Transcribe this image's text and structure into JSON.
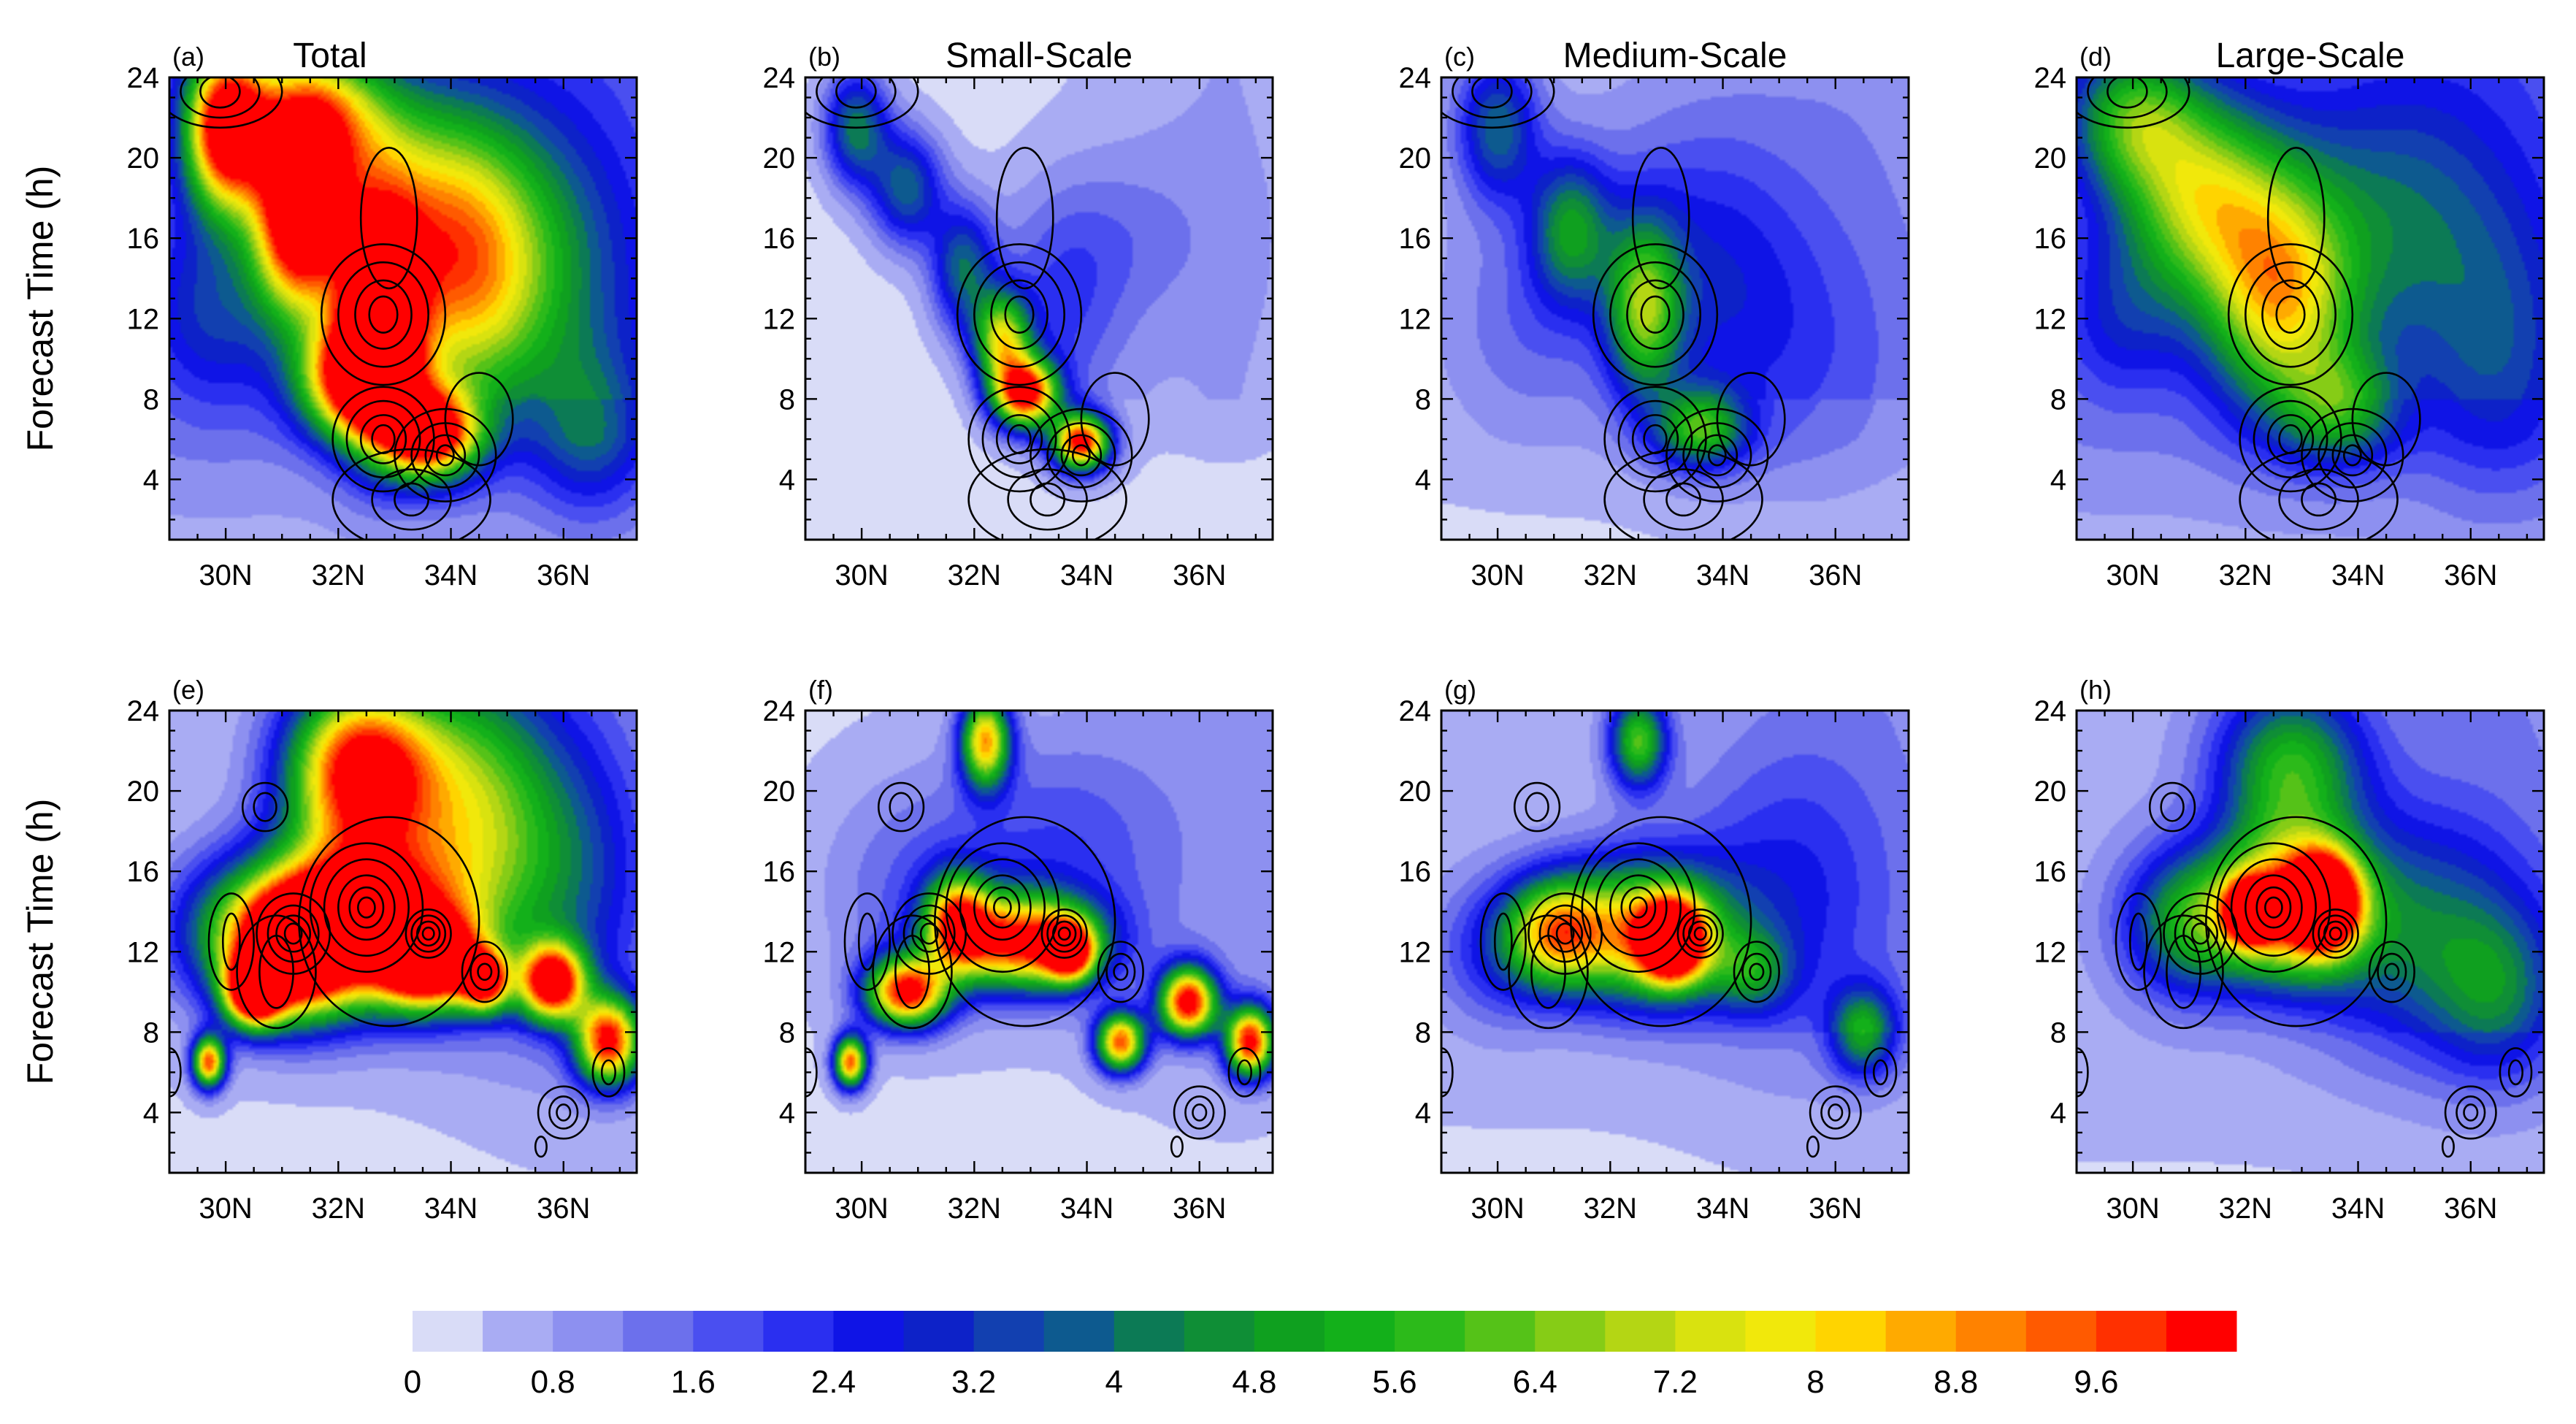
{
  "chart_data": {
    "type": "heatmap",
    "figure_note": "",
    "ylabel": "Forecast Time (h)",
    "x_ticks": [
      "30N",
      "32N",
      "34N",
      "36N"
    ],
    "x_tick_values": [
      30,
      32,
      34,
      36
    ],
    "y_ticks": [
      "4",
      "8",
      "12",
      "16",
      "20",
      "24"
    ],
    "y_tick_values": [
      4,
      8,
      12,
      16,
      20,
      24
    ],
    "xlim": [
      29.0,
      37.3
    ],
    "ylim": [
      1.0,
      24.0
    ],
    "grid": false,
    "panels": [
      {
        "tag": "(a)",
        "title": "Total",
        "row": 0,
        "col": 0,
        "blobs": [
          {
            "lat": 32.7,
            "t": 12.0,
            "sx": 0.55,
            "sy": 4.0,
            "amp": 10.2
          },
          {
            "lat": 31.3,
            "t": 17.0,
            "sx": 0.55,
            "sy": 3.2,
            "amp": 10.5
          },
          {
            "lat": 30.0,
            "t": 21.5,
            "sx": 0.5,
            "sy": 2.8,
            "amp": 10.0
          },
          {
            "lat": 33.6,
            "t": 6.2,
            "sx": 0.6,
            "sy": 1.6,
            "amp": 10.5
          },
          {
            "lat": 32.3,
            "t": 9.0,
            "sx": 0.7,
            "sy": 2.0,
            "amp": 8.5
          },
          {
            "lat": 34.2,
            "t": 13.0,
            "sx": 0.9,
            "sy": 4.0,
            "amp": 4.2
          },
          {
            "lat": 33.5,
            "t": 18.0,
            "sx": 1.3,
            "sy": 4.0,
            "amp": 5.0
          },
          {
            "lat": 31.5,
            "t": 22.0,
            "sx": 0.9,
            "sy": 2.5,
            "amp": 7.0
          },
          {
            "lat": 35.5,
            "t": 14.0,
            "sx": 1.2,
            "sy": 5.0,
            "amp": 2.6
          },
          {
            "lat": 29.8,
            "t": 12.5,
            "sx": 0.9,
            "sy": 3.5,
            "amp": 2.2
          },
          {
            "lat": 36.5,
            "t": 6.0,
            "sx": 0.7,
            "sy": 3.0,
            "amp": 2.3
          }
        ],
        "bg": 1.1
      },
      {
        "tag": "(b)",
        "title": "Small-Scale",
        "row": 0,
        "col": 1,
        "blobs": [
          {
            "lat": 32.9,
            "t": 8.3,
            "sx": 0.4,
            "sy": 1.2,
            "amp": 10.0
          },
          {
            "lat": 33.9,
            "t": 5.8,
            "sx": 0.35,
            "sy": 1.0,
            "amp": 10.2
          },
          {
            "lat": 32.5,
            "t": 11.0,
            "sx": 0.35,
            "sy": 1.6,
            "amp": 6.5
          },
          {
            "lat": 31.8,
            "t": 14.5,
            "sx": 0.4,
            "sy": 2.2,
            "amp": 3.6
          },
          {
            "lat": 30.8,
            "t": 18.5,
            "sx": 0.45,
            "sy": 2.0,
            "amp": 3.6
          },
          {
            "lat": 29.9,
            "t": 21.5,
            "sx": 0.4,
            "sy": 2.0,
            "amp": 4.0
          },
          {
            "lat": 33.5,
            "t": 12.0,
            "sx": 0.8,
            "sy": 4.0,
            "amp": 1.5
          },
          {
            "lat": 34.5,
            "t": 16.0,
            "sx": 1.2,
            "sy": 3.0,
            "amp": 0.8
          }
        ],
        "bg": 0.2
      },
      {
        "tag": "(c)",
        "title": "Medium-Scale",
        "row": 0,
        "col": 2,
        "blobs": [
          {
            "lat": 32.6,
            "t": 12.5,
            "sx": 0.45,
            "sy": 3.0,
            "amp": 5.0
          },
          {
            "lat": 33.6,
            "t": 6.5,
            "sx": 0.55,
            "sy": 1.4,
            "amp": 4.8
          },
          {
            "lat": 31.3,
            "t": 16.5,
            "sx": 0.5,
            "sy": 2.5,
            "amp": 3.8
          },
          {
            "lat": 30.0,
            "t": 21.5,
            "sx": 0.5,
            "sy": 2.5,
            "amp": 3.4
          },
          {
            "lat": 33.5,
            "t": 15.0,
            "sx": 1.3,
            "sy": 5.0,
            "amp": 1.8
          },
          {
            "lat": 35.0,
            "t": 10.0,
            "sx": 1.5,
            "sy": 5.0,
            "amp": 0.9
          },
          {
            "lat": 30.5,
            "t": 12.0,
            "sx": 1.0,
            "sy": 4.0,
            "amp": 1.0
          }
        ],
        "bg": 0.5
      },
      {
        "tag": "(d)",
        "title": "Large-Scale",
        "row": 0,
        "col": 3,
        "blobs": [
          {
            "lat": 32.6,
            "t": 13.0,
            "sx": 0.9,
            "sy": 4.0,
            "amp": 6.2
          },
          {
            "lat": 31.2,
            "t": 18.0,
            "sx": 1.0,
            "sy": 3.5,
            "amp": 5.5
          },
          {
            "lat": 30.0,
            "t": 22.0,
            "sx": 0.8,
            "sy": 2.5,
            "amp": 4.2
          },
          {
            "lat": 33.7,
            "t": 7.5,
            "sx": 0.7,
            "sy": 2.0,
            "amp": 3.5
          },
          {
            "lat": 34.5,
            "t": 17.0,
            "sx": 1.5,
            "sy": 5.0,
            "amp": 2.5
          },
          {
            "lat": 36.5,
            "t": 10.0,
            "sx": 1.0,
            "sy": 5.0,
            "amp": 1.6
          },
          {
            "lat": 29.8,
            "t": 12.0,
            "sx": 0.8,
            "sy": 3.0,
            "amp": 1.6
          }
        ],
        "bg": 1.1
      },
      {
        "tag": "(e)",
        "title": "",
        "row": 1,
        "col": 0,
        "blobs": [
          {
            "lat": 32.3,
            "t": 13.5,
            "sx": 1.2,
            "sy": 2.7,
            "amp": 12.0
          },
          {
            "lat": 33.6,
            "t": 11.5,
            "sx": 0.6,
            "sy": 1.5,
            "amp": 10.5
          },
          {
            "lat": 31.2,
            "t": 12.0,
            "sx": 0.7,
            "sy": 2.2,
            "amp": 10.0
          },
          {
            "lat": 32.4,
            "t": 21.0,
            "sx": 0.9,
            "sy": 3.0,
            "amp": 10.5
          },
          {
            "lat": 30.5,
            "t": 10.0,
            "sx": 0.35,
            "sy": 1.2,
            "amp": 10.0
          },
          {
            "lat": 35.8,
            "t": 10.5,
            "sx": 0.4,
            "sy": 1.3,
            "amp": 10.0
          },
          {
            "lat": 36.8,
            "t": 7.5,
            "sx": 0.4,
            "sy": 1.5,
            "amp": 9.5
          },
          {
            "lat": 34.6,
            "t": 10.5,
            "sx": 0.3,
            "sy": 1.0,
            "amp": 8.0
          },
          {
            "lat": 34.3,
            "t": 19.0,
            "sx": 1.0,
            "sy": 5.0,
            "amp": 5.5
          },
          {
            "lat": 29.7,
            "t": 6.5,
            "sx": 0.2,
            "sy": 0.9,
            "amp": 9.0
          },
          {
            "lat": 30.0,
            "t": 13.0,
            "sx": 0.8,
            "sy": 2.5,
            "amp": 3.0
          },
          {
            "lat": 36.0,
            "t": 16.0,
            "sx": 1.0,
            "sy": 5.0,
            "amp": 2.5
          }
        ],
        "bg": 0.4
      },
      {
        "tag": "(f)",
        "title": "",
        "row": 1,
        "col": 1,
        "blobs": [
          {
            "lat": 32.9,
            "t": 12.5,
            "sx": 0.9,
            "sy": 1.6,
            "amp": 9.5
          },
          {
            "lat": 30.8,
            "t": 10.0,
            "sx": 0.5,
            "sy": 1.2,
            "amp": 9.8
          },
          {
            "lat": 31.7,
            "t": 13.5,
            "sx": 0.4,
            "sy": 1.6,
            "amp": 7.5
          },
          {
            "lat": 33.7,
            "t": 12.0,
            "sx": 0.3,
            "sy": 1.0,
            "amp": 8.0
          },
          {
            "lat": 32.2,
            "t": 22.5,
            "sx": 0.3,
            "sy": 1.6,
            "amp": 8.0
          },
          {
            "lat": 35.8,
            "t": 9.5,
            "sx": 0.35,
            "sy": 1.2,
            "amp": 10.0
          },
          {
            "lat": 36.9,
            "t": 7.5,
            "sx": 0.3,
            "sy": 1.2,
            "amp": 10.0
          },
          {
            "lat": 34.6,
            "t": 7.5,
            "sx": 0.3,
            "sy": 1.0,
            "amp": 9.0
          },
          {
            "lat": 29.8,
            "t": 6.5,
            "sx": 0.2,
            "sy": 0.9,
            "amp": 9.0
          },
          {
            "lat": 33.5,
            "t": 17.0,
            "sx": 1.3,
            "sy": 4.0,
            "amp": 1.5
          },
          {
            "lat": 31.0,
            "t": 15.0,
            "sx": 1.2,
            "sy": 4.0,
            "amp": 1.3
          }
        ],
        "bg": 0.3
      },
      {
        "tag": "(g)",
        "title": "",
        "row": 1,
        "col": 2,
        "blobs": [
          {
            "lat": 32.5,
            "t": 13.0,
            "sx": 1.1,
            "sy": 2.4,
            "amp": 7.5
          },
          {
            "lat": 33.1,
            "t": 12.5,
            "sx": 0.4,
            "sy": 1.4,
            "amp": 10.0
          },
          {
            "lat": 31.0,
            "t": 13.0,
            "sx": 0.6,
            "sy": 1.8,
            "amp": 5.5
          },
          {
            "lat": 32.5,
            "t": 22.5,
            "sx": 0.35,
            "sy": 1.6,
            "amp": 5.5
          },
          {
            "lat": 34.5,
            "t": 11.0,
            "sx": 0.5,
            "sy": 1.4,
            "amp": 2.8
          },
          {
            "lat": 36.5,
            "t": 8.0,
            "sx": 0.4,
            "sy": 1.5,
            "amp": 4.2
          },
          {
            "lat": 35.0,
            "t": 15.0,
            "sx": 1.3,
            "sy": 5.0,
            "amp": 1.6
          },
          {
            "lat": 30.0,
            "t": 12.0,
            "sx": 0.8,
            "sy": 2.5,
            "amp": 1.8
          }
        ],
        "bg": 0.5
      },
      {
        "tag": "(h)",
        "title": "",
        "row": 1,
        "col": 3,
        "blobs": [
          {
            "lat": 32.8,
            "t": 14.2,
            "sx": 0.9,
            "sy": 2.5,
            "amp": 8.5
          },
          {
            "lat": 33.4,
            "t": 14.5,
            "sx": 0.4,
            "sy": 1.5,
            "amp": 10.0
          },
          {
            "lat": 32.1,
            "t": 14.0,
            "sx": 0.3,
            "sy": 1.0,
            "amp": 9.5
          },
          {
            "lat": 32.8,
            "t": 21.0,
            "sx": 0.9,
            "sy": 3.0,
            "amp": 5.0
          },
          {
            "lat": 31.0,
            "t": 13.5,
            "sx": 0.8,
            "sy": 2.5,
            "amp": 4.5
          },
          {
            "lat": 35.0,
            "t": 13.0,
            "sx": 1.3,
            "sy": 4.0,
            "amp": 3.0
          },
          {
            "lat": 36.5,
            "t": 10.0,
            "sx": 0.8,
            "sy": 3.0,
            "amp": 2.5
          }
        ],
        "bg": 0.6
      }
    ],
    "contour_groups": {
      "top": [
        {
          "lat": 29.9,
          "t": 23.3,
          "r": [
            0.35,
            0.7,
            1.1
          ],
          "ry": [
            0.8,
            1.3,
            1.8
          ]
        },
        {
          "lat": 32.8,
          "t": 12.2,
          "r": [
            0.25,
            0.5,
            0.8,
            1.1
          ],
          "ry": [
            0.9,
            1.7,
            2.6,
            3.5
          ]
        },
        {
          "lat": 32.9,
          "t": 17.0,
          "r": [
            0.5
          ],
          "ry": [
            3.5
          ]
        },
        {
          "lat": 32.8,
          "t": 6.0,
          "r": [
            0.2,
            0.4,
            0.65,
            0.9
          ],
          "ry": [
            0.7,
            1.2,
            1.9,
            2.6
          ]
        },
        {
          "lat": 33.9,
          "t": 5.2,
          "r": [
            0.15,
            0.35,
            0.6,
            0.9
          ],
          "ry": [
            0.5,
            1.0,
            1.6,
            2.3
          ]
        },
        {
          "lat": 33.3,
          "t": 3.0,
          "r": [
            0.3,
            0.7,
            1.4
          ],
          "ry": [
            0.8,
            1.5,
            2.5
          ]
        },
        {
          "lat": 34.5,
          "t": 7.0,
          "r": [
            0.6
          ],
          "ry": [
            2.3
          ]
        }
      ],
      "bottom": [
        {
          "lat": 31.2,
          "t": 12.9,
          "r": [
            0.15,
            0.3,
            0.45,
            0.65
          ],
          "ry": [
            0.5,
            0.9,
            1.4,
            2.0
          ]
        },
        {
          "lat": 30.9,
          "t": 11.0,
          "r": [
            0.3,
            0.7
          ],
          "ry": [
            1.8,
            2.8
          ]
        },
        {
          "lat": 30.7,
          "t": 19.2,
          "r": [
            0.2,
            0.4
          ],
          "ry": [
            0.7,
            1.2
          ]
        },
        {
          "lat": 32.5,
          "t": 14.2,
          "r": [
            0.15,
            0.3,
            0.5,
            0.75,
            1.0
          ],
          "ry": [
            0.5,
            1.0,
            1.6,
            2.4,
            3.2
          ]
        },
        {
          "lat": 32.9,
          "t": 13.5,
          "r": [
            1.6
          ],
          "ry": [
            5.2
          ]
        },
        {
          "lat": 33.6,
          "t": 12.9,
          "r": [
            0.1,
            0.2,
            0.3,
            0.4
          ],
          "ry": [
            0.3,
            0.6,
            0.9,
            1.2
          ]
        },
        {
          "lat": 34.6,
          "t": 11.0,
          "r": [
            0.12,
            0.25,
            0.4
          ],
          "ry": [
            0.4,
            0.9,
            1.5
          ]
        },
        {
          "lat": 30.1,
          "t": 12.5,
          "r": [
            0.15,
            0.4
          ],
          "ry": [
            1.4,
            2.4
          ]
        },
        {
          "lat": 36.0,
          "t": 4.0,
          "r": [
            0.12,
            0.25,
            0.45
          ],
          "ry": [
            0.4,
            0.8,
            1.3
          ]
        },
        {
          "lat": 36.8,
          "t": 6.0,
          "r": [
            0.12,
            0.28
          ],
          "ry": [
            0.6,
            1.2
          ]
        },
        {
          "lat": 29.0,
          "t": 6.0,
          "r": [
            0.2
          ],
          "ry": [
            1.2
          ]
        },
        {
          "lat": 35.6,
          "t": 2.3,
          "r": [
            0.1
          ],
          "ry": [
            0.5
          ]
        }
      ]
    },
    "colorbar": {
      "labels": [
        "0",
        "0.8",
        "1.6",
        "2.4",
        "3.2",
        "4",
        "4.8",
        "5.6",
        "6.4",
        "7.2",
        "8",
        "8.8",
        "9.6"
      ],
      "levels": [
        0,
        0.4,
        0.8,
        1.2,
        1.6,
        2.0,
        2.4,
        2.8,
        3.2,
        3.6,
        4.0,
        4.4,
        4.8,
        5.2,
        5.6,
        6.0,
        6.4,
        6.8,
        7.2,
        7.6,
        8.0,
        8.4,
        8.8,
        9.2,
        9.6,
        10.0
      ],
      "colors": [
        "#d9dcf7",
        "#a9acf3",
        "#8d90f0",
        "#6c70ec",
        "#4a4ff0",
        "#2a2ff0",
        "#0f14e6",
        "#0d22c8",
        "#1240b0",
        "#0d5a8f",
        "#0c7a55",
        "#0f8e36",
        "#0fa01f",
        "#13b01a",
        "#2cba1a",
        "#55c218",
        "#86cc16",
        "#b4d614",
        "#d9e20f",
        "#f1e80b",
        "#ffd400",
        "#ffaa00",
        "#ff8200",
        "#ff5a00",
        "#ff3000",
        "#ff0000"
      ]
    }
  }
}
